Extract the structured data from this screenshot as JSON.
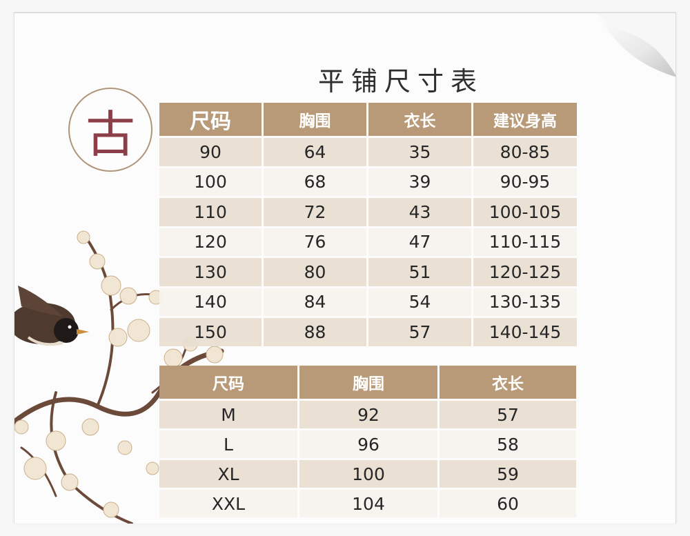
{
  "page": {
    "title": "平铺尺寸表",
    "seal_char": "古"
  },
  "colors": {
    "header_bg": "#b99a78",
    "row_dark": "#e8ded0",
    "row_light": "#f6f3ee",
    "seal_text": "#8c3f48",
    "seal_ring": "#b09479"
  },
  "kids_table": {
    "headers": [
      "尺码",
      "胸围",
      "衣长",
      "建议身高"
    ],
    "rows": [
      [
        "90",
        "64",
        "35",
        "80-85"
      ],
      [
        "100",
        "68",
        "39",
        "90-95"
      ],
      [
        "110",
        "72",
        "43",
        "100-105"
      ],
      [
        "120",
        "76",
        "47",
        "110-115"
      ],
      [
        "130",
        "80",
        "51",
        "120-125"
      ],
      [
        "140",
        "84",
        "54",
        "130-135"
      ],
      [
        "150",
        "88",
        "57",
        "140-145"
      ]
    ]
  },
  "adult_table": {
    "headers": [
      "尺码",
      "胸围",
      "衣长"
    ],
    "rows": [
      [
        "M",
        "92",
        "57"
      ],
      [
        "L",
        "96",
        "58"
      ],
      [
        "XL",
        "100",
        "59"
      ],
      [
        "XXL",
        "104",
        "60"
      ]
    ]
  },
  "decor": {
    "illustration": "plum-blossom-and-bird"
  }
}
